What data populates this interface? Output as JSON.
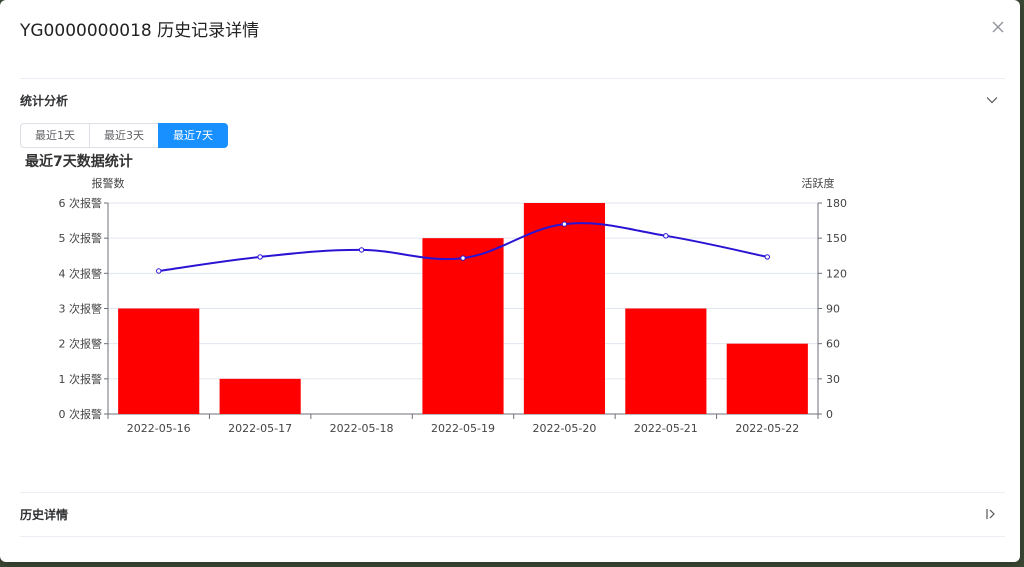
{
  "modal": {
    "title": "YG0000000018 历史记录详情"
  },
  "stats_section": {
    "title": "统计分析",
    "tabs": [
      {
        "label": "最近1天",
        "active": false
      },
      {
        "label": "最近3天",
        "active": false
      },
      {
        "label": "最近7天",
        "active": true
      }
    ]
  },
  "history_section": {
    "title": "历史详情"
  },
  "colors": {
    "accent": "#1890ff",
    "bar": "#ff0000",
    "line": "#2a14d4"
  },
  "chart_data": {
    "type": "bar",
    "title": "最近7天数据统计",
    "categories": [
      "2022-05-16",
      "2022-05-17",
      "2022-05-18",
      "2022-05-19",
      "2022-05-20",
      "2022-05-21",
      "2022-05-22"
    ],
    "y_left": {
      "label": "报警数",
      "min": 0,
      "max": 6,
      "ticks": [
        0,
        1,
        2,
        3,
        4,
        5,
        6
      ],
      "tick_suffix": " 次报警"
    },
    "y_right": {
      "label": "活跃度",
      "min": 0,
      "max": 180,
      "ticks": [
        0,
        30,
        60,
        90,
        120,
        150,
        180
      ]
    },
    "grid": true,
    "series": [
      {
        "type": "bar",
        "axis": "left",
        "values": [
          3,
          1,
          0,
          5,
          6,
          3,
          2
        ]
      },
      {
        "type": "line",
        "axis": "right",
        "smooth": true,
        "values": [
          122,
          134,
          140,
          133,
          162,
          152,
          134
        ]
      }
    ]
  }
}
